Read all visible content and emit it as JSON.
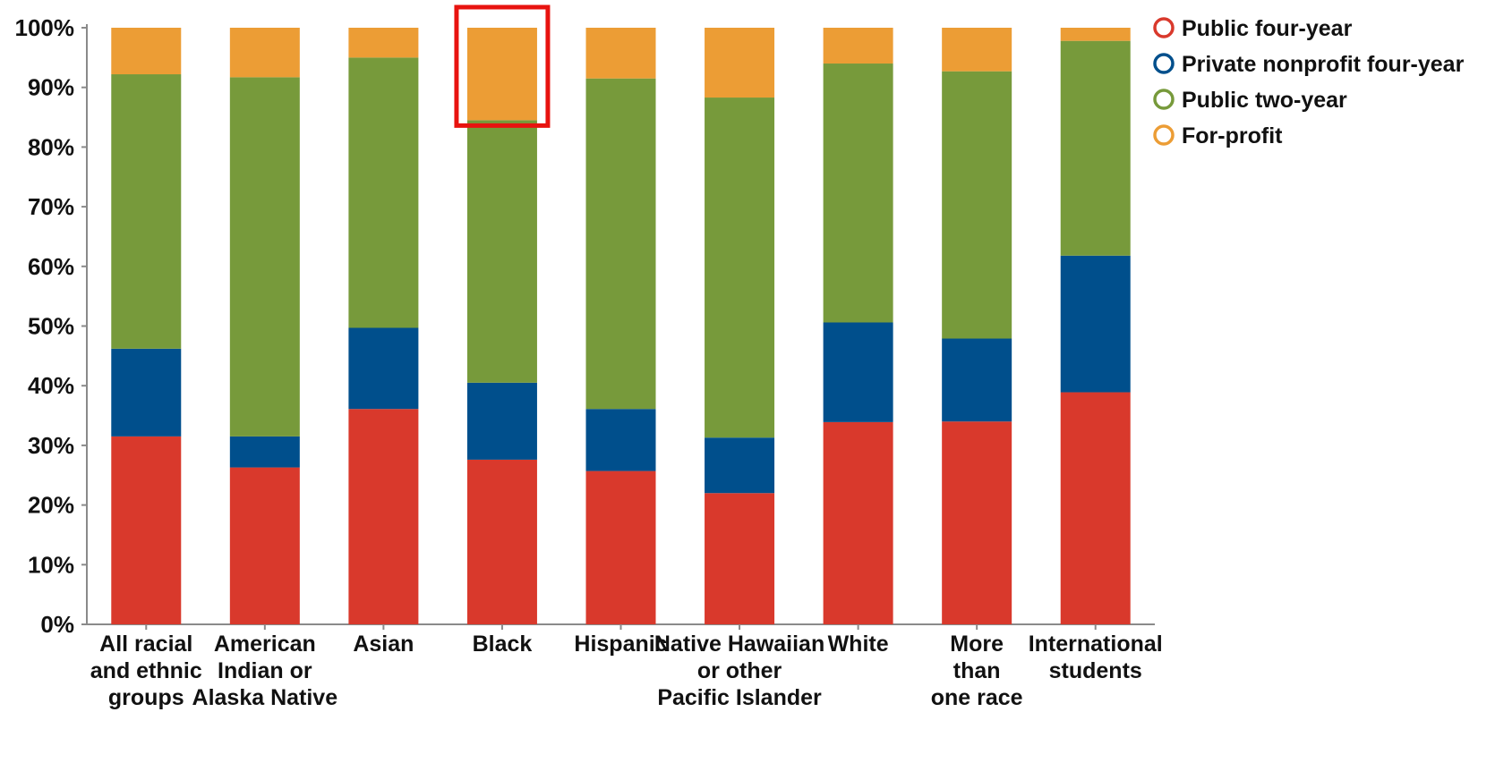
{
  "chart_data": {
    "type": "bar",
    "stacked": true,
    "title": "",
    "xlabel": "",
    "ylabel": "",
    "ylim": [
      0,
      100
    ],
    "y_ticks": [
      "0%",
      "10%",
      "20%",
      "30%",
      "40%",
      "50%",
      "60%",
      "70%",
      "80%",
      "90%",
      "100%"
    ],
    "y_tick_values": [
      0,
      10,
      20,
      30,
      40,
      50,
      60,
      70,
      80,
      90,
      100
    ],
    "grid": false,
    "legend_position": "top-right",
    "categories": [
      [
        "All racial",
        "and ethnic",
        "groups"
      ],
      [
        "American",
        "Indian or",
        "Alaska Native"
      ],
      [
        "Asian"
      ],
      [
        "Black"
      ],
      [
        "Hispanic"
      ],
      [
        "Native Hawaiian",
        "or other",
        "Pacific Islander"
      ],
      [
        "White"
      ],
      [
        "More",
        "than",
        "one race"
      ],
      [
        "International",
        "students"
      ]
    ],
    "series": [
      {
        "name": "Public four-year",
        "color": "#d9392c",
        "values": [
          31.5,
          26.3,
          36.1,
          27.6,
          25.7,
          22.0,
          33.9,
          34.0,
          38.9
        ]
      },
      {
        "name": "Private nonprofit four-year",
        "color": "#004f8c",
        "values": [
          14.7,
          5.2,
          13.6,
          12.9,
          10.4,
          9.3,
          16.7,
          13.9,
          22.9
        ]
      },
      {
        "name": "Public two-year",
        "color": "#779a3b",
        "values": [
          46.0,
          60.2,
          45.3,
          44.0,
          55.4,
          57.0,
          43.4,
          44.8,
          36.0
        ]
      },
      {
        "name": "For-profit",
        "color": "#ec9d35",
        "values": [
          7.8,
          8.3,
          5.0,
          15.5,
          8.5,
          11.7,
          6.0,
          7.3,
          2.2
        ]
      }
    ],
    "highlight": {
      "category_index": 3,
      "series_index": 3,
      "color": "#e8130f"
    }
  }
}
